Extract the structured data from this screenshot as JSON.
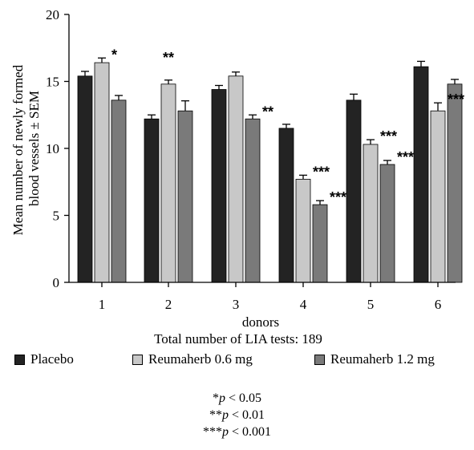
{
  "chart_data": {
    "type": "bar",
    "categories": [
      "1",
      "2",
      "3",
      "4",
      "5",
      "6"
    ],
    "series": [
      {
        "name": "Placebo",
        "color": "#232323",
        "values": [
          15.4,
          12.2,
          14.4,
          11.5,
          13.6,
          16.1
        ],
        "errors": [
          0.35,
          0.3,
          0.3,
          0.3,
          0.45,
          0.4
        ]
      },
      {
        "name": "Reumaherb 0.6 mg",
        "color": "#c8c8c8",
        "values": [
          16.4,
          14.8,
          15.4,
          7.7,
          10.3,
          12.8
        ],
        "errors": [
          0.35,
          0.3,
          0.3,
          0.3,
          0.35,
          0.6
        ]
      },
      {
        "name": "Reumaherb 1.2 mg",
        "color": "#7a7a7a",
        "values": [
          13.6,
          12.8,
          12.2,
          5.8,
          8.8,
          14.8
        ],
        "errors": [
          0.35,
          0.75,
          0.3,
          0.3,
          0.3,
          0.35
        ]
      }
    ],
    "significance": [
      {
        "category": "1",
        "series": 1,
        "label": "*"
      },
      {
        "category": "2",
        "series": 1,
        "label": "**"
      },
      {
        "category": "3",
        "series": 2,
        "label": "**"
      },
      {
        "category": "4",
        "series": 1,
        "label": "***"
      },
      {
        "category": "4",
        "series": 2,
        "label": "***"
      },
      {
        "category": "5",
        "series": 1,
        "label": "***"
      },
      {
        "category": "5",
        "series": 2,
        "label": "***"
      },
      {
        "category": "6",
        "series": 1,
        "label": "***"
      }
    ],
    "xlabel": "donors",
    "ylabel": "Mean number of newly formed blood vessels ± SEM",
    "ylabel_lines": [
      "Mean number of newly formed",
      "blood vessels ± SEM"
    ],
    "ylim": [
      0,
      20
    ],
    "yticks": [
      0,
      5,
      10,
      15,
      20
    ],
    "grid": false,
    "legend_position": "bottom",
    "subtitle": "Total number of LIA tests: 189"
  },
  "footnotes": [
    {
      "stars": "*",
      "italic": "p",
      "rest": " < 0.05"
    },
    {
      "stars": "**",
      "italic": "p",
      "rest": " < 0.01"
    },
    {
      "stars": "***",
      "italic": "p",
      "rest": " < 0.001"
    }
  ]
}
